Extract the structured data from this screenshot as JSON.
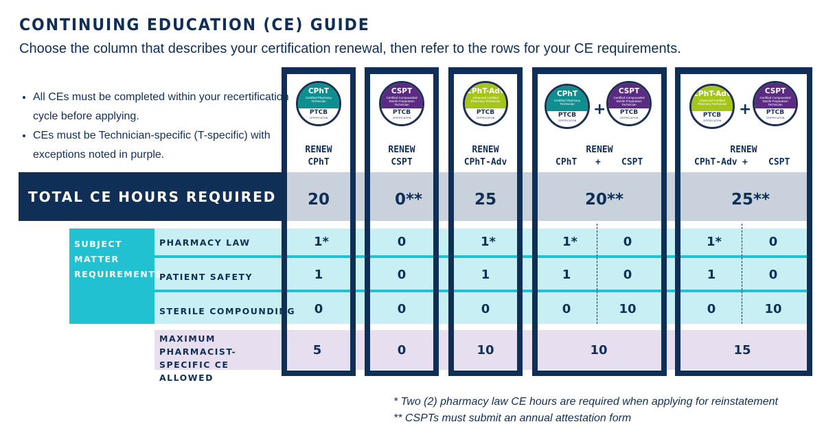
{
  "title": "CONTINUING EDUCATION (CE) GUIDE",
  "subtitle": "Choose the column that describes your certification renewal, then refer to the rows for your CE requirements.",
  "notes": [
    "All CEs must be completed within your recertification cycle before applying.",
    "CEs must be Technician-specific (T-specific) with exceptions noted in purple."
  ],
  "colors": {
    "navy": "#0f2f57",
    "teal": "#21c1d2",
    "light_teal": "#c8f0f4",
    "gray": "#c9d1dd",
    "lavender": "#e7dff0",
    "cpht_green": "#0e8e8e",
    "cspt_purple": "#5b2a82",
    "adv_lime": "#a6c51b"
  },
  "badges": {
    "cpht": {
      "name": "CPhT",
      "desc": "Certified Pharmacy Technician",
      "org": "PTCB",
      "cert": "CERTIFICATION",
      "icon": "cpht-badge-icon"
    },
    "cspt": {
      "name": "CSPT",
      "desc": "Certified Compounded Sterile Preparation Technician",
      "org": "PTCB",
      "cert": "CERTIFICATION",
      "icon": "cspt-badge-icon"
    },
    "adv": {
      "name": "CPhT-Adv",
      "desc": "Advanced Certified Pharmacy Technician",
      "org": "PTCB",
      "cert": "CERTIFICATION",
      "icon": "cpht-adv-badge-icon"
    }
  },
  "plus_sign": "+",
  "columns": [
    {
      "renew": "RENEW",
      "cert": "CPhT"
    },
    {
      "renew": "RENEW",
      "cert": "CSPT"
    },
    {
      "renew": "RENEW",
      "cert": "CPhT-Adv"
    },
    {
      "renew": "RENEW",
      "cert_a": "CPhT",
      "cert_b": "CSPT"
    },
    {
      "renew": "RENEW",
      "cert_a": "CPhT-Adv",
      "cert_b": "CSPT"
    }
  ],
  "total_label": "TOTAL CE HOURS REQUIRED",
  "total_values": [
    "20",
    "0**",
    "25",
    "20**",
    "25**"
  ],
  "subject_matter_label": "SUBJECT MATTER REQUIREMENTS",
  "rows": [
    {
      "label": "PHARMACY LAW",
      "values": [
        "1*",
        "0",
        "1*",
        "1*",
        "0",
        "1*",
        "0"
      ]
    },
    {
      "label": "PATIENT SAFETY",
      "values": [
        "1",
        "0",
        "1",
        "1",
        "0",
        "1",
        "0"
      ]
    },
    {
      "label": "STERILE COMPOUNDING",
      "values": [
        "0",
        "0",
        "0",
        "0",
        "10",
        "0",
        "10"
      ]
    }
  ],
  "max_label": "MAXIMUM PHARMACIST-SPECIFIC CE ALLOWED",
  "max_values": [
    "5",
    "0",
    "10",
    "10",
    "15"
  ],
  "footnotes": [
    "* Two (2) pharmacy law CE hours are required when applying for reinstatement",
    "** CSPTs must submit an annual attestation form"
  ]
}
